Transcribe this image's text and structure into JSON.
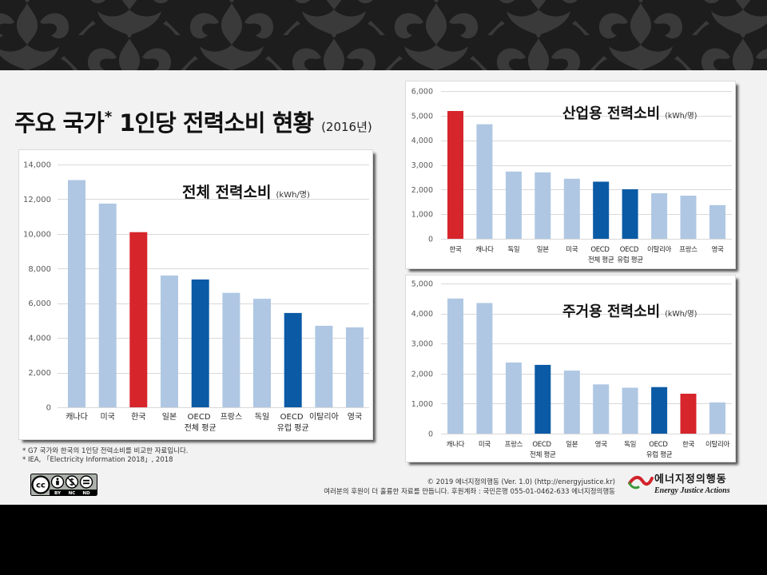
{
  "header": {
    "title_main": "주요 국가",
    "title_mark": "*",
    "title_rest": "1인당 전력소비 현황",
    "title_year": "(2016년)"
  },
  "chart_data": [
    {
      "type": "bar",
      "title": "전체 전력소비",
      "unit": "(kWh/명)",
      "categories": [
        "캐나다",
        "미국",
        "한국",
        "일본",
        "OECD 전체 평균",
        "프랑스",
        "독일",
        "OECD 유럽 평균",
        "이탈리아",
        "영국"
      ],
      "values": [
        13100,
        11750,
        10100,
        7600,
        7370,
        6600,
        6260,
        5440,
        4700,
        4610
      ],
      "ylim": [
        0,
        14000
      ],
      "yticks": [
        0,
        2000,
        4000,
        6000,
        8000,
        10000,
        12000,
        14000
      ],
      "grid": true,
      "bar_colors": [
        "#afc7e3",
        "#afc7e3",
        "#d7252c",
        "#afc7e3",
        "#0a5aa5",
        "#afc7e3",
        "#afc7e3",
        "#0a5aa5",
        "#afc7e3",
        "#afc7e3"
      ]
    },
    {
      "type": "bar",
      "title": "산업용 전력소비",
      "unit": "(kWh/명)",
      "categories": [
        "한국",
        "캐나다",
        "독일",
        "일본",
        "미국",
        "OECD 전체 평균",
        "OECD 유럽 평균",
        "이탈리아",
        "프랑스",
        "영국"
      ],
      "values": [
        5190,
        4650,
        2730,
        2700,
        2440,
        2320,
        2010,
        1850,
        1750,
        1370
      ],
      "ylim": [
        0,
        6000
      ],
      "yticks": [
        0,
        1000,
        2000,
        3000,
        4000,
        5000,
        6000
      ],
      "grid": true,
      "bar_colors": [
        "#d7252c",
        "#afc7e3",
        "#afc7e3",
        "#afc7e3",
        "#afc7e3",
        "#0a5aa5",
        "#0a5aa5",
        "#afc7e3",
        "#afc7e3",
        "#afc7e3"
      ]
    },
    {
      "type": "bar",
      "title": "주거용 전력소비",
      "unit": "(kWh/명)",
      "categories": [
        "캐나다",
        "미국",
        "프랑스",
        "OECD 전체 평균",
        "일본",
        "영국",
        "독일",
        "OECD 유럽 평균",
        "한국",
        "이탈리아"
      ],
      "values": [
        4500,
        4350,
        2370,
        2290,
        2100,
        1640,
        1530,
        1550,
        1330,
        1040
      ],
      "ylim": [
        0,
        5000
      ],
      "yticks": [
        0,
        1000,
        2000,
        3000,
        4000,
        5000
      ],
      "grid": true,
      "bar_colors": [
        "#afc7e3",
        "#afc7e3",
        "#afc7e3",
        "#0a5aa5",
        "#afc7e3",
        "#afc7e3",
        "#afc7e3",
        "#0a5aa5",
        "#d7252c",
        "#afc7e3"
      ]
    }
  ],
  "footnotes": [
    "* G7 국가와 한국의 1인당 전력소비를 비교한 자료입니다.",
    "* IEA, 「Electricity Information 2018」, 2018"
  ],
  "license": {
    "cc": "cc",
    "terms": [
      "BY",
      "NC",
      "ND"
    ]
  },
  "footer": {
    "copyright": "© 2019 에너지정의행동 (Ver. 1.0) (http://energyjustice.kr)",
    "support": "여러분의 후원이 더 훌륭한 자료를 만듭니다. 후원계좌 : 국민은행 055-01-0462-633 에너지정의행동"
  },
  "logo": {
    "name_ko": "에너지정의행동",
    "name_en": "Energy Justice Actions"
  },
  "colors": {
    "banner": "#1d1d1d",
    "background": "#f2f2f2",
    "bar": "#afc7e3",
    "highlight_korea": "#d7252c",
    "highlight_oecd": "#0a5aa5"
  }
}
